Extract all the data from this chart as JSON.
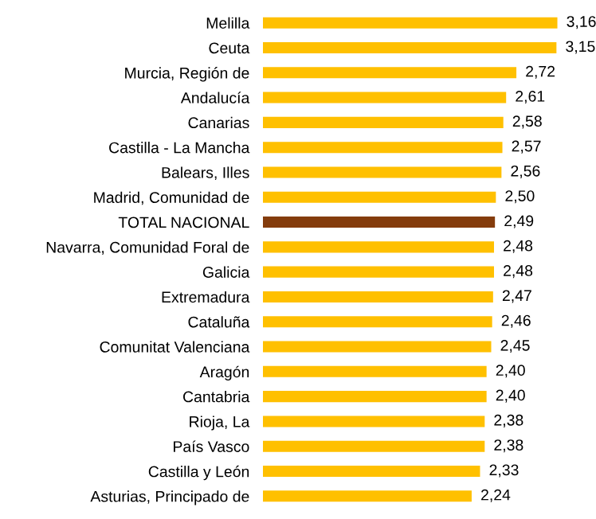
{
  "chart_data": {
    "type": "bar",
    "orientation": "horizontal",
    "categories": [
      "Melilla",
      "Ceuta",
      "Murcia, Región de",
      "Andalucía",
      "Canarias",
      "Castilla - La Mancha",
      "Balears, Illes",
      "Madrid, Comunidad de",
      "TOTAL NACIONAL",
      "Navarra, Comunidad Foral de",
      "Galicia",
      "Extremadura",
      "Cataluña",
      "Comunitat Valenciana",
      "Aragón",
      "Cantabria",
      "Rioja, La",
      "País Vasco",
      "Castilla y León",
      "Asturias, Principado de"
    ],
    "values": [
      3.16,
      3.15,
      2.72,
      2.61,
      2.58,
      2.57,
      2.56,
      2.5,
      2.49,
      2.48,
      2.48,
      2.47,
      2.46,
      2.45,
      2.4,
      2.4,
      2.38,
      2.38,
      2.33,
      2.24
    ],
    "colors": [
      "#ffc000",
      "#ffc000",
      "#ffc000",
      "#ffc000",
      "#ffc000",
      "#ffc000",
      "#ffc000",
      "#ffc000",
      "#843c0c",
      "#ffc000",
      "#ffc000",
      "#ffc000",
      "#ffc000",
      "#ffc000",
      "#ffc000",
      "#ffc000",
      "#ffc000",
      "#ffc000",
      "#ffc000",
      "#ffc000"
    ],
    "value_labels": [
      "3,16",
      "3,15",
      "2,72",
      "2,61",
      "2,58",
      "2,57",
      "2,56",
      "2,50",
      "2,49",
      "2,48",
      "2,48",
      "2,47",
      "2,46",
      "2,45",
      "2,40",
      "2,40",
      "2,38",
      "2,38",
      "2,33",
      "2,24"
    ],
    "tick_labels": "y",
    "grid": false,
    "legend": false
  }
}
